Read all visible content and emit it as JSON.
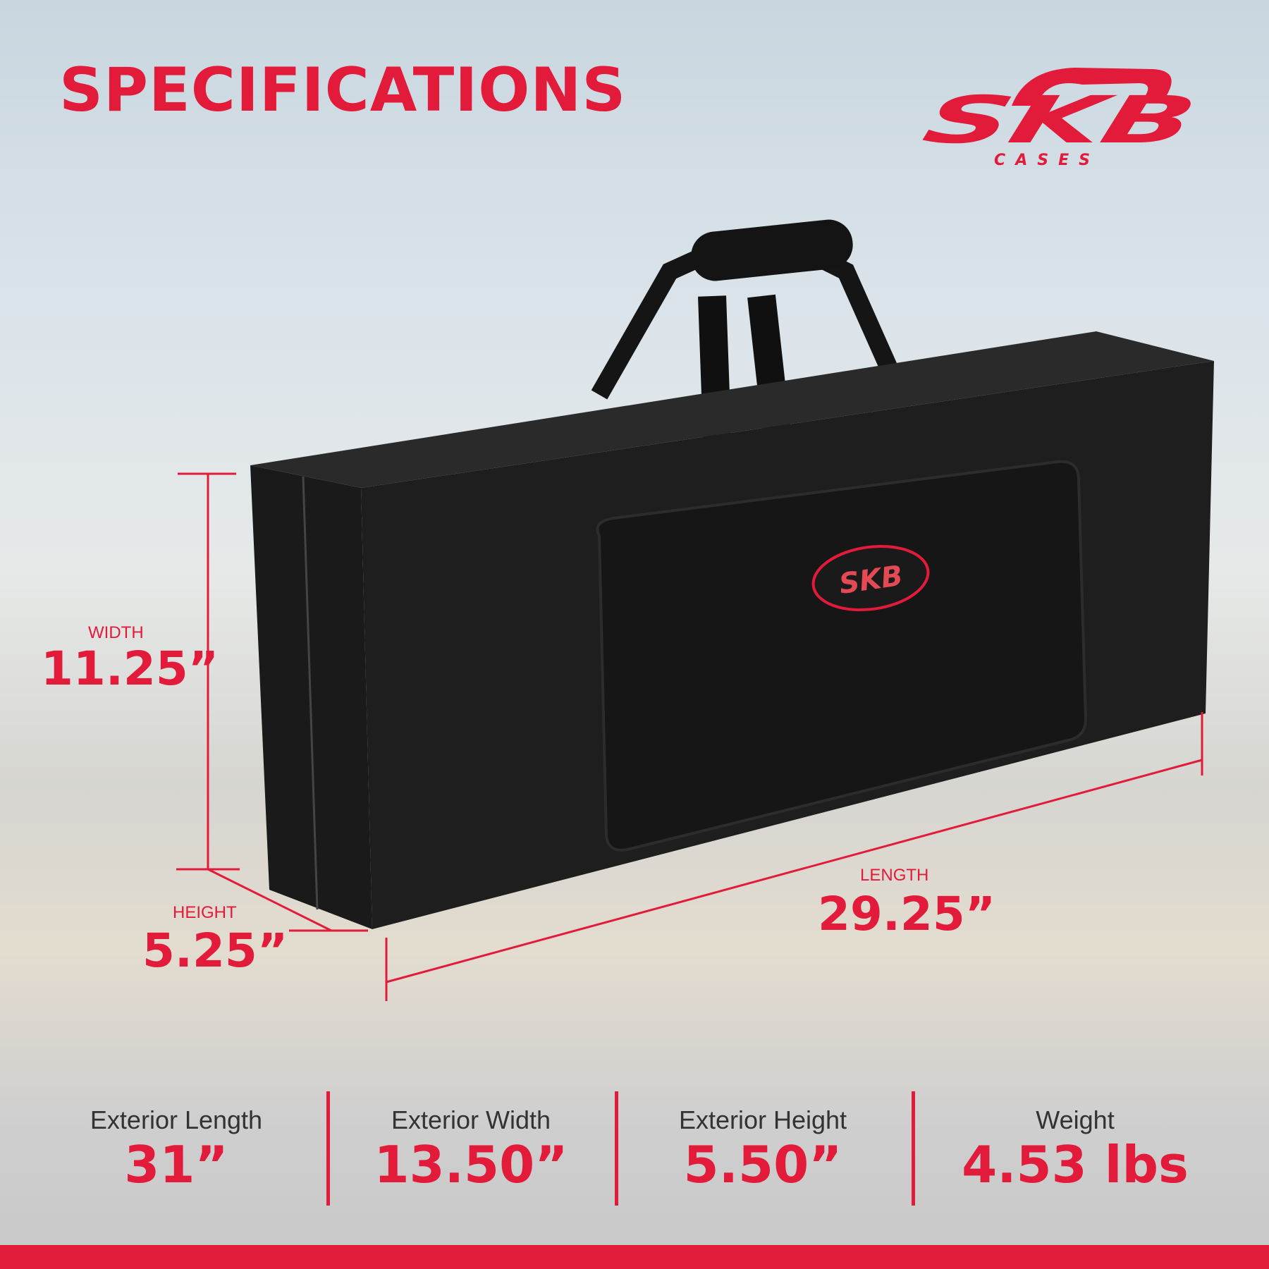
{
  "header": {
    "title": "SPECIFICATIONS"
  },
  "logo": {
    "brand": "SKB",
    "sub": "CASES"
  },
  "colors": {
    "accent": "#e31b3a",
    "bag": "#1c1c1c"
  },
  "dimensions": {
    "width": {
      "label": "WIDTH",
      "value": "11.25”"
    },
    "height": {
      "label": "HEIGHT",
      "value": "5.25”"
    },
    "length": {
      "label": "LENGTH",
      "value": "29.25”"
    }
  },
  "specs": [
    {
      "label": "Exterior Length",
      "value": "31”"
    },
    {
      "label": "Exterior Width",
      "value": "13.50”"
    },
    {
      "label": "Exterior Height",
      "value": "5.50”"
    },
    {
      "label": "Weight",
      "value": "4.53 lbs"
    }
  ]
}
